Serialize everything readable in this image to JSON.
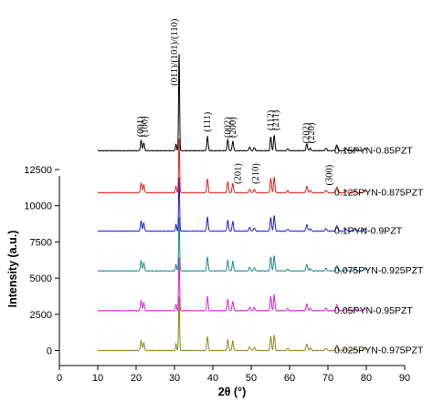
{
  "chart_data": {
    "type": "line",
    "xlabel": "2θ (°)",
    "ylabel": "Intensity (a.u.)",
    "xlim": [
      0,
      90
    ],
    "ylim": [
      -900,
      14500
    ],
    "x_ticks": [
      "0",
      "10",
      "20",
      "30",
      "40",
      "50",
      "60",
      "70",
      "80",
      "90"
    ],
    "y_ticks": [
      "0",
      "2500",
      "5000",
      "7500",
      "10000",
      "12500"
    ],
    "grid": false,
    "legend": "none",
    "x_range_data": [
      10,
      80
    ],
    "peaks": [
      {
        "pos": 21.3,
        "h": 700,
        "w": 0.18
      },
      {
        "pos": 22.0,
        "h": 550,
        "w": 0.18
      },
      {
        "pos": 30.4,
        "h": 450,
        "w": 0.15
      },
      {
        "pos": 31.2,
        "h": 3700,
        "w": 0.13
      },
      {
        "pos": 38.6,
        "h": 950,
        "w": 0.18
      },
      {
        "pos": 43.9,
        "h": 750,
        "w": 0.18
      },
      {
        "pos": 45.2,
        "h": 650,
        "w": 0.18
      },
      {
        "pos": 49.6,
        "h": 250,
        "w": 0.2
      },
      {
        "pos": 50.8,
        "h": 220,
        "w": 0.2
      },
      {
        "pos": 55.1,
        "h": 950,
        "w": 0.18
      },
      {
        "pos": 56.0,
        "h": 1050,
        "w": 0.18
      },
      {
        "pos": 59.5,
        "h": 130,
        "w": 0.22
      },
      {
        "pos": 64.5,
        "h": 450,
        "w": 0.2
      },
      {
        "pos": 65.4,
        "h": 170,
        "w": 0.2
      },
      {
        "pos": 69.5,
        "h": 170,
        "w": 0.22
      },
      {
        "pos": 72.3,
        "h": 380,
        "w": 0.22
      },
      {
        "pos": 74.7,
        "h": 170,
        "w": 0.22
      },
      {
        "pos": 77.1,
        "h": 150,
        "w": 0.22
      },
      {
        "pos": 79.6,
        "h": 180,
        "w": 0.22
      }
    ],
    "series": [
      {
        "name": "0.025PYN-0.975PZT",
        "offset": 0,
        "color": "#8a8a1a",
        "top": null
      },
      {
        "name": "0.05PYN-0.95PZT",
        "offset": 2750,
        "color": "#e020e0",
        "top": null
      },
      {
        "name": "0.075PYN-0.925PZT",
        "offset": 5500,
        "color": "#1a8a8a",
        "top": null
      },
      {
        "name": "0.1PYN-0.9PZT",
        "offset": 8250,
        "color": "#1f1fd0",
        "top": null
      },
      {
        "name": "0.125PYN-0.875PZT",
        "offset": 10900,
        "color": "#e01f1f",
        "top": null
      },
      {
        "name": "0.15PYN-0.85PZT",
        "offset": 13800,
        "color": "#000000",
        "top": 20500
      }
    ],
    "annotations": [
      {
        "text": "(001)",
        "x": 21.2,
        "y": 14750
      },
      {
        "text": "(100)",
        "x": 22.3,
        "y": 14750
      },
      {
        "text": "(011)/(101)/(110)",
        "x": 30.0,
        "y": 18300
      },
      {
        "text": "(111)",
        "x": 38.6,
        "y": 15100
      },
      {
        "text": "(002)",
        "x": 43.9,
        "y": 14700
      },
      {
        "text": "(200)",
        "x": 45.2,
        "y": 14700
      },
      {
        "text": "(201)",
        "x": 46.6,
        "y": 11500
      },
      {
        "text": "(210)",
        "x": 51.2,
        "y": 11500
      },
      {
        "text": "(112)",
        "x": 55.1,
        "y": 15200
      },
      {
        "text": "(211)",
        "x": 56.4,
        "y": 15200
      },
      {
        "text": "(202)",
        "x": 64.4,
        "y": 14300
      },
      {
        "text": "(220)",
        "x": 65.7,
        "y": 14300
      },
      {
        "text": "(300)",
        "x": 70.4,
        "y": 11400
      }
    ]
  }
}
